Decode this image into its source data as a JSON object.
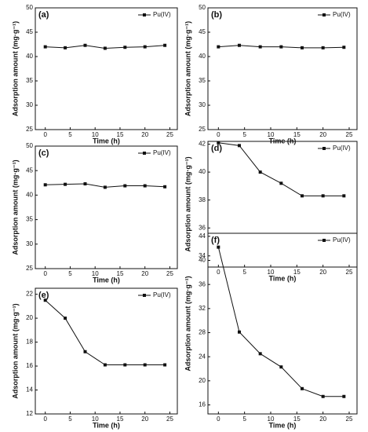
{
  "chart_data": [
    {
      "type": "line",
      "panel_label": "(a)",
      "x_label": "Time (h)",
      "y_label": "Adsorption amount (mg·g⁻¹)",
      "x": [
        0,
        4,
        8,
        12,
        16,
        20,
        24
      ],
      "xlim": [
        -2,
        26.5
      ],
      "xticks": [
        0,
        5,
        10,
        15,
        20,
        25
      ],
      "ylim": [
        25,
        50
      ],
      "yticks": [
        25,
        30,
        35,
        40,
        45,
        50
      ],
      "series": [
        {
          "name": "Pu(IV)",
          "color": "#111111",
          "values": [
            42.0,
            41.8,
            42.3,
            41.7,
            41.9,
            42.0,
            42.3
          ]
        }
      ]
    },
    {
      "type": "line",
      "panel_label": "(b)",
      "x_label": "Time (h)",
      "y_label": "Adsorption amount (mg·g⁻¹)",
      "x": [
        0,
        4,
        8,
        12,
        16,
        20,
        24
      ],
      "xlim": [
        -2,
        26.5
      ],
      "xticks": [
        0,
        5,
        10,
        15,
        20,
        25
      ],
      "ylim": [
        25,
        50
      ],
      "yticks": [
        25,
        30,
        35,
        40,
        45,
        50
      ],
      "series": [
        {
          "name": "Pu(IV)",
          "color": "#111111",
          "values": [
            42.0,
            42.3,
            42.0,
            42.0,
            41.8,
            41.8,
            41.9
          ]
        }
      ]
    },
    {
      "type": "line",
      "panel_label": "(c)",
      "x_label": "Time (h)",
      "y_label": "Adsorption amount (mg·g⁻¹)",
      "x": [
        0,
        4,
        8,
        12,
        16,
        20,
        24
      ],
      "xlim": [
        -2,
        26.5
      ],
      "xticks": [
        0,
        5,
        10,
        15,
        20,
        25
      ],
      "ylim": [
        25,
        50
      ],
      "yticks": [
        25,
        30,
        35,
        40,
        45,
        50
      ],
      "series": [
        {
          "name": "Pu(IV)",
          "color": "#111111",
          "values": [
            42.1,
            42.2,
            42.3,
            41.6,
            41.9,
            41.9,
            41.7
          ]
        }
      ]
    },
    {
      "type": "line",
      "panel_label": "(d)",
      "x_label": "Time (h)",
      "y_label": "Adsorption amount (mg·g⁻¹)",
      "x": [
        0,
        4,
        8,
        12,
        16,
        20,
        24
      ],
      "xlim": [
        -2,
        26.5
      ],
      "xticks": [
        0,
        5,
        10,
        15,
        20,
        25
      ],
      "ylim": [
        33.2,
        42.2
      ],
      "yticks": [
        34,
        36,
        38,
        40,
        42
      ],
      "series": [
        {
          "name": "Pu(IV)",
          "color": "#111111",
          "values": [
            42.1,
            41.9,
            40.0,
            39.2,
            38.3,
            38.3,
            38.3
          ]
        }
      ]
    },
    {
      "type": "line",
      "panel_label": "(e)",
      "x_label": "Time (h)",
      "y_label": "Adsorption amount (mg·g⁻¹)",
      "x": [
        0,
        4,
        8,
        12,
        16,
        20,
        24
      ],
      "xlim": [
        -2,
        26.5
      ],
      "xticks": [
        0,
        5,
        10,
        15,
        20,
        25
      ],
      "ylim": [
        12,
        22.5
      ],
      "yticks": [
        12,
        14,
        16,
        18,
        20,
        22
      ],
      "series": [
        {
          "name": "Pu(IV)",
          "color": "#111111",
          "values": [
            21.5,
            20.0,
            17.2,
            16.1,
            16.1,
            16.1,
            16.1
          ]
        }
      ]
    },
    {
      "type": "line",
      "panel_label": "(f)",
      "x_label": "Time (h)",
      "y_label": "Adsorption amount (mg·g⁻¹)",
      "x": [
        0,
        4,
        8,
        12,
        16,
        20,
        24
      ],
      "xlim": [
        -2,
        26.5
      ],
      "xticks": [
        0,
        5,
        10,
        15,
        20,
        25
      ],
      "ylim": [
        14.5,
        44.5
      ],
      "yticks": [
        16,
        20,
        24,
        28,
        32,
        36,
        40,
        44
      ],
      "series": [
        {
          "name": "Pu(IV)",
          "color": "#111111",
          "values": [
            42.2,
            28.1,
            24.5,
            22.3,
            18.7,
            17.4,
            17.4
          ]
        }
      ]
    }
  ]
}
